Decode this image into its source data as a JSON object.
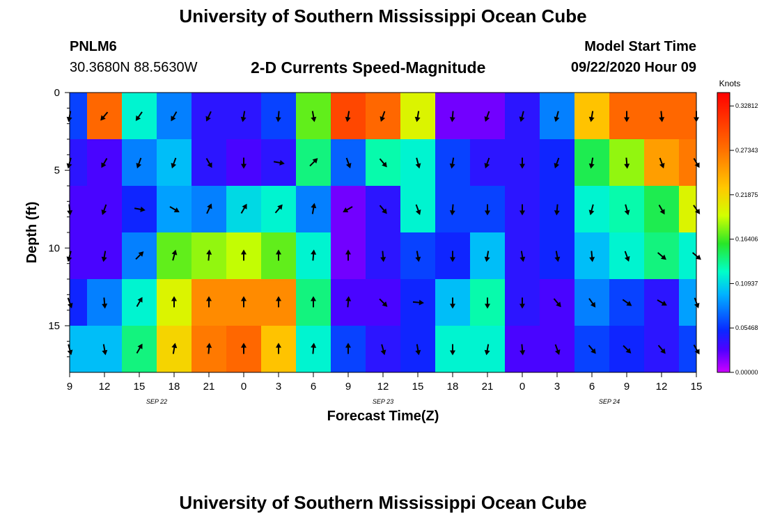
{
  "header": {
    "title": "University of Southern Mississippi Ocean Cube",
    "station": "PNLM6",
    "coords": "30.3680N 88.5630W",
    "subtitle": "2-D Currents Speed-Magnitude",
    "model_start_label": "Model Start Time",
    "model_start_value": "09/22/2020 Hour 09"
  },
  "footer": {
    "title": "University of Southern Mississippi Ocean Cube"
  },
  "chart_data": {
    "type": "heatmap",
    "xlabel": "Forecast Time(Z)",
    "ylabel": "Depth (ft)",
    "x_ticks": [
      "9",
      "12",
      "15",
      "18",
      "21",
      "0",
      "3",
      "6",
      "9",
      "12",
      "15",
      "18",
      "21",
      "0",
      "3",
      "6",
      "9",
      "12",
      "15"
    ],
    "date_labels": [
      {
        "label": "SEP 22",
        "tick_index": 2.5
      },
      {
        "label": "SEP 23",
        "tick_index": 9
      },
      {
        "label": "SEP 24",
        "tick_index": 15.5
      }
    ],
    "y_ticks": [
      0,
      5,
      10,
      15
    ],
    "ylim": [
      0,
      18
    ],
    "y_inverted": true,
    "colorbar": {
      "unit": "Knots",
      "ticks": [
        "0.00000",
        "0.05468",
        "0.10937",
        "0.16406",
        "0.21875",
        "0.27343",
        "0.32812"
      ],
      "min": 0,
      "max": 0.3446
    },
    "speed_grid": {
      "rows": [
        "0-3 ft",
        "3-6 ft",
        "6-9 ft",
        "9-12 ft",
        "12-15 ft",
        "15-18 ft"
      ],
      "cols": 19,
      "values": [
        [
          0.06,
          0.28,
          0.12,
          0.08,
          0.04,
          0.04,
          0.06,
          0.17,
          0.3,
          0.28,
          0.2,
          0.02,
          0.02,
          0.04,
          0.08,
          0.23,
          0.28,
          0.28,
          0.28
        ],
        [
          0.04,
          0.03,
          0.08,
          0.1,
          0.04,
          0.03,
          0.04,
          0.14,
          0.07,
          0.13,
          0.12,
          0.06,
          0.04,
          0.04,
          0.05,
          0.15,
          0.18,
          0.25,
          0.27
        ],
        [
          0.03,
          0.03,
          0.05,
          0.09,
          0.08,
          0.11,
          0.12,
          0.08,
          0.02,
          0.04,
          0.12,
          0.06,
          0.06,
          0.04,
          0.05,
          0.12,
          0.13,
          0.15,
          0.2
        ],
        [
          0.03,
          0.03,
          0.08,
          0.17,
          0.18,
          0.19,
          0.17,
          0.12,
          0.02,
          0.04,
          0.06,
          0.05,
          0.1,
          0.04,
          0.05,
          0.1,
          0.12,
          0.14,
          0.12
        ],
        [
          0.05,
          0.08,
          0.12,
          0.2,
          0.26,
          0.26,
          0.26,
          0.14,
          0.03,
          0.03,
          0.05,
          0.1,
          0.13,
          0.04,
          0.03,
          0.08,
          0.06,
          0.04,
          0.09
        ],
        [
          0.1,
          0.1,
          0.14,
          0.22,
          0.27,
          0.28,
          0.23,
          0.12,
          0.06,
          0.04,
          0.05,
          0.12,
          0.12,
          0.03,
          0.03,
          0.06,
          0.05,
          0.04,
          0.06
        ]
      ]
    },
    "vectors": {
      "description_rows": "direction angles in degrees (0=north, 90=east, 180=south)",
      "rows": [
        [
          190,
          220,
          215,
          210,
          205,
          190,
          185,
          170,
          190,
          200,
          190,
          185,
          200,
          195,
          195,
          190,
          180,
          175,
          180
        ],
        [
          195,
          210,
          200,
          200,
          150,
          180,
          100,
          45,
          160,
          140,
          165,
          190,
          200,
          180,
          200,
          190,
          175,
          160,
          150
        ],
        [
          175,
          200,
          100,
          120,
          25,
          30,
          40,
          10,
          240,
          140,
          160,
          185,
          180,
          180,
          185,
          195,
          165,
          150,
          145
        ],
        [
          195,
          190,
          45,
          15,
          5,
          0,
          0,
          5,
          0,
          175,
          170,
          180,
          190,
          170,
          170,
          175,
          160,
          130,
          130
        ],
        [
          160,
          175,
          30,
          0,
          0,
          0,
          0,
          0,
          5,
          135,
          95,
          180,
          180,
          180,
          140,
          145,
          125,
          120,
          160
        ],
        [
          165,
          170,
          30,
          10,
          5,
          0,
          0,
          5,
          0,
          165,
          170,
          180,
          190,
          175,
          160,
          140,
          135,
          140,
          150
        ]
      ]
    }
  }
}
